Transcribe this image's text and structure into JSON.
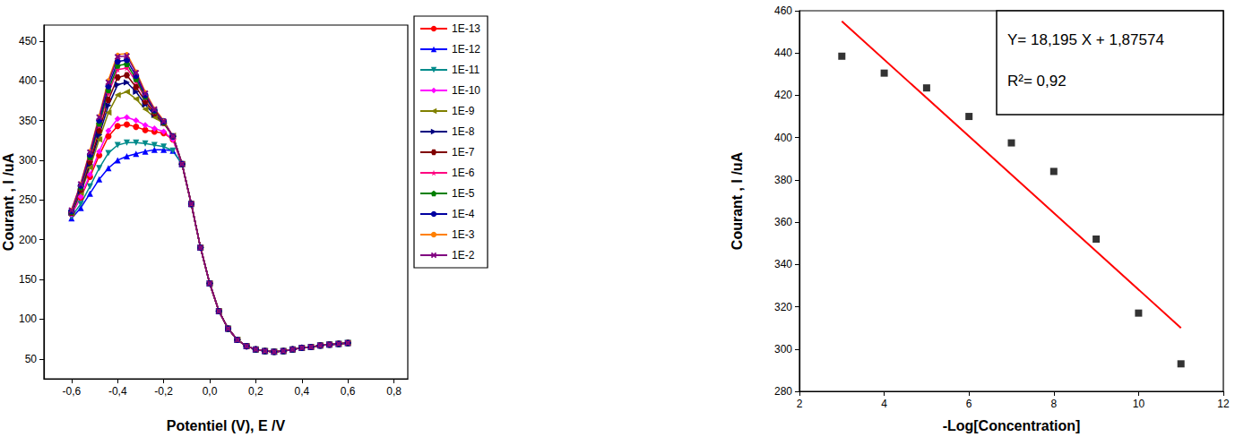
{
  "chart_data": [
    {
      "type": "line",
      "xlabel": "Potentiel (V), E /V",
      "ylabel": "Courant , I /uA",
      "xlim": [
        -0.72,
        0.86
      ],
      "xticks": [
        {
          "value": -0.6,
          "label": "-0,6"
        },
        {
          "value": -0.4,
          "label": "-0,4"
        },
        {
          "value": -0.2,
          "label": "-0,2"
        },
        {
          "value": 0,
          "label": "0,0"
        },
        {
          "value": 0.2,
          "label": "0,2"
        },
        {
          "value": 0.4,
          "label": "0,4"
        },
        {
          "value": 0.6,
          "label": "0,6"
        },
        {
          "value": 0.8,
          "label": "0,8"
        }
      ],
      "ylim": [
        25,
        470
      ],
      "yticks": [
        50,
        100,
        150,
        200,
        250,
        300,
        350,
        400,
        450
      ],
      "grid": false,
      "legend": "right",
      "x": [
        -0.6,
        -0.56,
        -0.52,
        -0.48,
        -0.44,
        -0.4,
        -0.36,
        -0.32,
        -0.28,
        -0.24,
        -0.2,
        -0.16,
        -0.12,
        -0.08,
        -0.04,
        0,
        0.04,
        0.08,
        0.12,
        0.16,
        0.2,
        0.24,
        0.28,
        0.32,
        0.36,
        0.4,
        0.44,
        0.48,
        0.52,
        0.56,
        0.6
      ],
      "series": [
        {
          "name": "1E-13",
          "color": "#ff0000",
          "marker": "circle",
          "values": [
            232,
            253,
            279,
            306,
            330,
            343,
            345,
            342,
            338,
            336,
            334,
            326,
            295,
            245,
            190,
            145,
            110,
            88,
            74,
            66,
            62,
            60,
            59,
            60,
            62,
            64,
            65,
            67,
            68,
            69,
            70
          ]
        },
        {
          "name": "1E-12",
          "color": "#0000ff",
          "marker": "triangle",
          "values": [
            227,
            240,
            258,
            276,
            290,
            300,
            305,
            308,
            311,
            313,
            313,
            312,
            295,
            245,
            190,
            145,
            110,
            88,
            74,
            66,
            62,
            60,
            59,
            60,
            62,
            64,
            65,
            67,
            68,
            69,
            70
          ]
        },
        {
          "name": "1E-11",
          "color": "#008b8b",
          "marker": "triangle-down",
          "values": [
            229,
            245,
            267,
            290,
            309,
            319,
            322,
            322,
            321,
            319,
            317,
            312,
            295,
            245,
            190,
            145,
            110,
            88,
            74,
            66,
            62,
            60,
            59,
            60,
            62,
            64,
            65,
            67,
            68,
            69,
            70
          ]
        },
        {
          "name": "1E-10",
          "color": "#ff00ff",
          "marker": "diamond",
          "values": [
            232,
            254,
            282,
            311,
            337,
            352,
            354,
            350,
            344,
            340,
            336,
            326,
            295,
            245,
            190,
            145,
            110,
            88,
            74,
            66,
            62,
            60,
            59,
            60,
            62,
            64,
            65,
            67,
            68,
            69,
            70
          ]
        },
        {
          "name": "1E-9",
          "color": "#808000",
          "marker": "triangle-left",
          "values": [
            233,
            259,
            291,
            326,
            360,
            382,
            386,
            377,
            364,
            354,
            346,
            331,
            295,
            245,
            190,
            145,
            110,
            88,
            74,
            66,
            62,
            60,
            59,
            60,
            62,
            64,
            65,
            67,
            68,
            69,
            70
          ]
        },
        {
          "name": "1E-8",
          "color": "#000080",
          "marker": "triangle-right",
          "values": [
            234,
            261,
            295,
            332,
            369,
            395,
            398,
            386,
            370,
            357,
            347,
            331,
            295,
            245,
            190,
            145,
            110,
            88,
            74,
            66,
            62,
            60,
            59,
            60,
            62,
            64,
            65,
            67,
            68,
            69,
            70
          ]
        },
        {
          "name": "1E-7",
          "color": "#800000",
          "marker": "hexagon",
          "values": [
            234,
            263,
            298,
            337,
            376,
            404,
            407,
            392,
            374,
            359,
            347,
            330,
            295,
            245,
            190,
            145,
            110,
            88,
            74,
            66,
            62,
            60,
            59,
            60,
            62,
            64,
            65,
            67,
            68,
            69,
            70
          ]
        },
        {
          "name": "1E-6",
          "color": "#ff0080",
          "marker": "star",
          "values": [
            235,
            265,
            302,
            343,
            384,
            414,
            416,
            399,
            378,
            361,
            348,
            330,
            295,
            245,
            190,
            145,
            110,
            88,
            74,
            66,
            62,
            60,
            59,
            60,
            62,
            64,
            65,
            67,
            68,
            69,
            70
          ]
        },
        {
          "name": "1E-5",
          "color": "#008000",
          "marker": "pentagon",
          "values": [
            235,
            266,
            304,
            346,
            388,
            419,
            421,
            402,
            380,
            362,
            348,
            330,
            295,
            245,
            190,
            145,
            110,
            88,
            74,
            66,
            62,
            60,
            59,
            60,
            62,
            64,
            65,
            67,
            68,
            69,
            70
          ]
        },
        {
          "name": "1E-4",
          "color": "#0000a0",
          "marker": "circle",
          "values": [
            236,
            268,
            307,
            350,
            393,
            424,
            426,
            406,
            382,
            363,
            349,
            330,
            295,
            245,
            190,
            145,
            110,
            88,
            74,
            66,
            62,
            60,
            59,
            60,
            62,
            64,
            65,
            67,
            68,
            69,
            70
          ]
        },
        {
          "name": "1E-3",
          "color": "#ff8000",
          "marker": "dot",
          "values": [
            238,
            271,
            312,
            356,
            401,
            433,
            434,
            412,
            386,
            365,
            350,
            330,
            295,
            245,
            190,
            145,
            110,
            88,
            74,
            66,
            62,
            60,
            59,
            60,
            62,
            64,
            65,
            67,
            68,
            69,
            70
          ]
        },
        {
          "name": "1E-2",
          "color": "#800080",
          "marker": "cross",
          "values": [
            237,
            270,
            310,
            354,
            398,
            430,
            431,
            410,
            384,
            364,
            349,
            330,
            295,
            245,
            190,
            145,
            110,
            88,
            74,
            66,
            62,
            60,
            59,
            60,
            62,
            64,
            65,
            67,
            68,
            69,
            70
          ]
        }
      ]
    },
    {
      "type": "scatter",
      "xlabel": "-Log[Concentration]",
      "ylabel": "Courant , I /uA",
      "xlim": [
        2,
        12
      ],
      "xticks": [
        2,
        4,
        6,
        8,
        10,
        12
      ],
      "ylim": [
        280,
        460
      ],
      "yticks": [
        280,
        300,
        320,
        340,
        360,
        380,
        400,
        420,
        440,
        460
      ],
      "grid": false,
      "annotations": [
        "Y= 18,195 X + 1,87574",
        "R²= 0,92"
      ],
      "series": [
        {
          "type": "scatter",
          "color": "#000000",
          "marker": "square",
          "x": [
            3,
            4,
            5,
            6,
            7,
            8,
            9,
            10,
            11
          ],
          "values": [
            438.5,
            430.5,
            423.5,
            410,
            397.5,
            384,
            352,
            317,
            293
          ]
        },
        {
          "type": "line",
          "color": "#ff0000",
          "marker": "none",
          "line_style": "solid",
          "x": [
            3,
            11
          ],
          "values": [
            455,
            310
          ]
        }
      ]
    }
  ]
}
